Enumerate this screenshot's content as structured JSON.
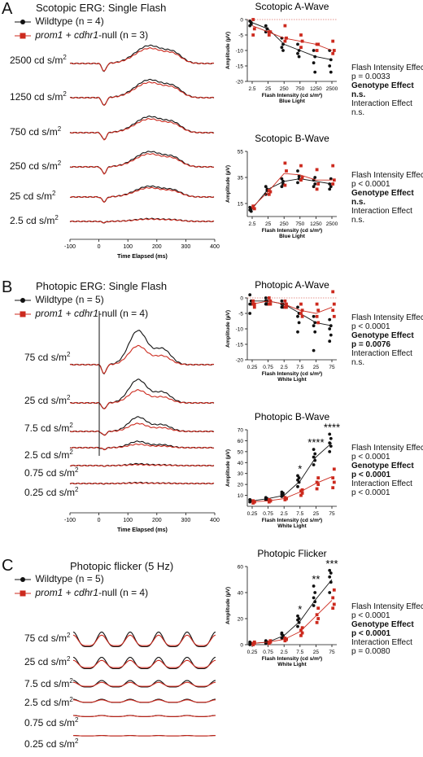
{
  "colors": {
    "wt": "#111111",
    "null": "#cc2a1e"
  },
  "panels": [
    {
      "letter": "A",
      "title": "Scotopic ERG: Single Flash",
      "legend_wt": "Wildtype (n = 4)",
      "legend_null_a": "prom1",
      "legend_null_b": " + ",
      "legend_null_c": "cdhr1",
      "legend_null_d": "-null (n = 3)",
      "intensity_labels": [
        "2500 cd s/m",
        "1250 cd s/m",
        "750 cd s/m",
        "250 cd s/m",
        "25 cd s/m",
        "2.5 cd s/m"
      ],
      "unit_sup": "2",
      "time_ticks": [
        "-100",
        "0",
        "100",
        "200",
        "300",
        "400"
      ],
      "time_label": "Time Elapsed (ms)"
    },
    {
      "letter": "B",
      "title": "Photopic ERG: Single Flash",
      "legend_wt": "Wildtype (n = 5)",
      "legend_null_a": "prom1",
      "legend_null_b": " + ",
      "legend_null_c": "cdhr1",
      "legend_null_d": "-null (n = 4)",
      "intensity_labels": [
        "75 cd s/m",
        "25 cd s/m",
        "7.5 cd s/m",
        "2.5 cd s/m",
        "0.75 cd s/m",
        "0.25 cd s/m"
      ],
      "unit_sup": "2",
      "time_ticks": [
        "-100",
        "0",
        "100",
        "200",
        "300",
        "400"
      ],
      "time_label": "Time Elapsed (ms)"
    },
    {
      "letter": "C",
      "title": "Photopic flicker (5 Hz)",
      "legend_wt": "Wildtype (n = 5)",
      "legend_null_a": "prom1",
      "legend_null_b": " + ",
      "legend_null_c": "cdhr1",
      "legend_null_d": "-null (n = 4)",
      "intensity_labels": [
        "75 cd s/m",
        "25 cd s/m",
        "7.5 cd s/m",
        "2.5 cd s/m",
        "0.75 cd s/m",
        "0.25 cd s/m"
      ],
      "unit_sup": "2"
    }
  ],
  "chart_data": [
    {
      "type": "scatter",
      "title": "Scotopic A-Wave",
      "xlabel": "Flash Intensity (cd s/m²)",
      "xsublabel": "Blue Light",
      "ylabel": "Amplitude (µV)",
      "categories": [
        "2.5",
        "25",
        "250",
        "750",
        "1250",
        "2500"
      ],
      "ylim": [
        -20,
        0
      ],
      "yticks": [
        "0",
        "-5",
        "-10",
        "-15",
        "-20"
      ],
      "series": [
        {
          "name": "Wildtype",
          "means": [
            -1,
            -3,
            -8,
            -10,
            -12,
            -13
          ],
          "points": [
            [
              -0.5,
              -1,
              -2,
              -1.5
            ],
            [
              -2,
              -3,
              -4,
              -3
            ],
            [
              -6,
              -8,
              -9,
              -10
            ],
            [
              -8,
              -10,
              -11,
              -12
            ],
            [
              -10,
              -12,
              -14,
              -17
            ],
            [
              -10,
              -13,
              -15,
              -17
            ]
          ]
        },
        {
          "name": "prom1 + cdhr1-null",
          "means": [
            -2,
            -4,
            -6,
            -7,
            -8,
            -10
          ],
          "points": [
            [
              0,
              -3,
              -5
            ],
            [
              -4,
              -4,
              -5
            ],
            [
              -2,
              -6,
              -7
            ],
            [
              -5,
              -7,
              -9
            ],
            [
              -8,
              -8,
              -10
            ],
            [
              -7,
              -10,
              -11
            ]
          ]
        }
      ],
      "stats": [
        "Flash Intensity Effect",
        "p = 0.0033",
        "Genotype Effect",
        "n.s.",
        "Interaction Effect",
        "n.s."
      ]
    },
    {
      "type": "scatter",
      "title": "Scotopic B-Wave",
      "xlabel": "Flash Intensity (cd s/m²)",
      "xsublabel": "Blue Light",
      "ylabel": "Amplitude (µV)",
      "categories": [
        "2.5",
        "25",
        "250",
        "750",
        "1250",
        "2500"
      ],
      "ylim": [
        5,
        55
      ],
      "yticks": [
        "55",
        "35",
        "15"
      ],
      "series": [
        {
          "name": "Wildtype",
          "means": [
            11,
            26,
            32,
            34,
            32,
            30
          ],
          "points": [
            [
              10,
              11,
              12,
              9
            ],
            [
              22,
              26,
              28,
              25
            ],
            [
              28,
              30,
              34,
              32
            ],
            [
              31,
              36,
              40,
              34
            ],
            [
              28,
              30,
              33,
              35
            ],
            [
              26,
              28,
              30,
              34
            ]
          ]
        },
        {
          "name": "prom1 + cdhr1-null",
          "means": [
            12,
            24,
            38,
            37,
            33,
            33
          ],
          "points": [
            [
              12,
              11,
              13
            ],
            [
              22,
              24,
              25
            ],
            [
              29,
              40,
              46
            ],
            [
              33,
              35,
              44
            ],
            [
              26,
              30,
              41
            ],
            [
              30,
              33,
              44
            ]
          ]
        }
      ],
      "stats": [
        "Flash Intensity Effect",
        "p < 0.0001",
        "Genotype Effect",
        "n.s.",
        "Interaction Effect",
        "n.s."
      ]
    },
    {
      "type": "scatter",
      "title": "Photopic A-Wave",
      "xlabel": "Flash Intensity (cd s/m²)",
      "xsublabel": "White Light",
      "ylabel": "Amplitude (µV)",
      "categories": [
        "0.25",
        "0.75",
        "2.5",
        "7.5",
        "25",
        "75"
      ],
      "ylim": [
        -20,
        0
      ],
      "yticks": [
        "0",
        "-5",
        "-10",
        "-15",
        "-20"
      ],
      "series": [
        {
          "name": "Wildtype",
          "means": [
            -1,
            -1,
            -2,
            -5,
            -8,
            -9
          ],
          "points": [
            [
              1,
              -1,
              -2,
              -2,
              -5
            ],
            [
              0,
              -1,
              -1,
              -2,
              -2
            ],
            [
              -1,
              -2,
              -2,
              -3,
              -3
            ],
            [
              -3,
              -5,
              -6,
              -8,
              -11
            ],
            [
              -6,
              -8,
              -9,
              -11,
              -17
            ],
            [
              -7,
              -9,
              -10,
              -12,
              -14
            ]
          ]
        },
        {
          "name": "prom1 + cdhr1-null",
          "means": [
            -2,
            -1,
            -2,
            -4,
            -5,
            -3
          ],
          "points": [
            [
              -1,
              -2,
              -2,
              -3
            ],
            [
              0,
              -1,
              -2,
              -2
            ],
            [
              -1,
              -2,
              -3,
              -3
            ],
            [
              -2,
              -4,
              -5,
              -6
            ],
            [
              -2,
              -4,
              -6,
              -8
            ],
            [
              2,
              -2,
              -4,
              -6
            ]
          ]
        }
      ],
      "stats": [
        "Flash Intensity Effect",
        "p < 0.0001",
        "Genotype Effect",
        "p = 0.0076",
        "Interaction Effect",
        "n.s."
      ]
    },
    {
      "type": "scatter",
      "title": "Photopic B-Wave",
      "xlabel": "Flash Intensity (cd s/m²)",
      "xsublabel": "White Light",
      "ylabel": "Amplitude (µV)",
      "categories": [
        "0.25",
        "0.75",
        "2.5",
        "7.5",
        "25",
        "75"
      ],
      "ylim": [
        0,
        70
      ],
      "yticks": [
        "70",
        "60",
        "50",
        "40",
        "30",
        "20",
        "10"
      ],
      "significance": [
        "",
        "",
        "",
        "*",
        "****",
        "****"
      ],
      "series": [
        {
          "name": "Wildtype",
          "means": [
            5,
            7,
            10,
            23,
            45,
            58
          ],
          "points": [
            [
              4,
              5,
              6,
              5,
              6
            ],
            [
              6,
              7,
              8,
              6,
              7
            ],
            [
              9,
              10,
              11,
              12,
              13
            ],
            [
              18,
              22,
              24,
              26,
              28
            ],
            [
              38,
              42,
              45,
              48,
              52
            ],
            [
              50,
              55,
              58,
              62,
              66
            ]
          ]
        },
        {
          "name": "prom1 + cdhr1-null",
          "means": [
            4,
            5,
            7,
            13,
            21,
            27
          ],
          "points": [
            [
              3,
              4,
              5,
              4
            ],
            [
              4,
              5,
              6,
              5
            ],
            [
              6,
              7,
              8,
              7
            ],
            [
              10,
              12,
              14,
              15
            ],
            [
              16,
              20,
              22,
              26
            ],
            [
              17,
              22,
              26,
              34
            ]
          ]
        }
      ],
      "stats": [
        "Flash Intensity Effect",
        "p < 0.0001",
        "Genotype Effect",
        "p < 0.0001",
        "Interaction Effect",
        "p < 0.0001"
      ]
    },
    {
      "type": "scatter",
      "title": "Photopic Flicker",
      "xlabel": "Flash Intensity (cd s/m²)",
      "xsublabel": "White Light",
      "ylabel": "Amplitude (µV)",
      "categories": [
        "0.25",
        "0.75",
        "2.5",
        "7.5",
        "25",
        "75"
      ],
      "ylim": [
        0,
        60
      ],
      "yticks": [
        "60",
        "40",
        "20",
        "0"
      ],
      "significance": [
        "",
        "",
        "",
        "*",
        "**",
        "***"
      ],
      "series": [
        {
          "name": "Wildtype",
          "means": [
            1,
            2,
            7,
            18,
            35,
            50
          ],
          "points": [
            [
              0,
              1,
              2,
              1,
              1
            ],
            [
              1,
              2,
              3,
              2,
              2
            ],
            [
              5,
              7,
              8,
              6,
              9
            ],
            [
              14,
              17,
              19,
              20,
              22
            ],
            [
              30,
              33,
              36,
              40,
              45
            ],
            [
              40,
              48,
              52,
              55,
              57
            ]
          ]
        },
        {
          "name": "prom1 + cdhr1-null",
          "means": [
            1,
            2,
            4,
            10,
            22,
            34
          ],
          "points": [
            [
              0,
              1,
              1,
              2
            ],
            [
              1,
              2,
              2,
              3
            ],
            [
              3,
              4,
              5,
              4
            ],
            [
              7,
              9,
              11,
              13
            ],
            [
              17,
              20,
              23,
              28
            ],
            [
              28,
              31,
              36,
              42
            ]
          ]
        }
      ],
      "stats": [
        "Flash Intensity Effect",
        "p < 0.0001",
        "Genotype Effect",
        "p < 0.0001",
        "Interaction Effect",
        "p = 0.0080"
      ]
    }
  ]
}
